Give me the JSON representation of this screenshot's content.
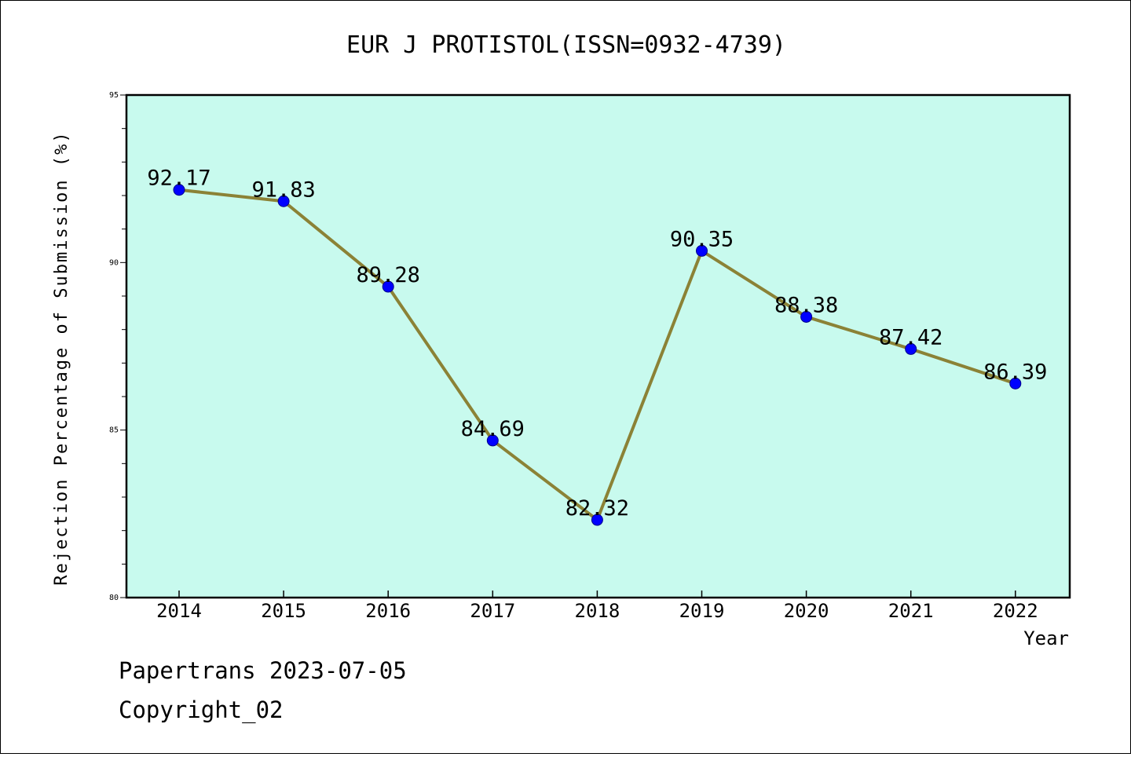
{
  "chart_data": {
    "type": "line",
    "title": "EUR J PROTISTOL(ISSN=0932-4739)",
    "xlabel": "Year",
    "ylabel": "Rejection Percentage of Submission (%)",
    "categories": [
      "2014",
      "2015",
      "2016",
      "2017",
      "2018",
      "2019",
      "2020",
      "2021",
      "2022"
    ],
    "values": [
      92.17,
      91.83,
      89.28,
      84.69,
      82.32,
      90.35,
      88.38,
      87.42,
      86.39
    ],
    "data_labels": [
      "92.17",
      "91.83",
      "89.28",
      "84.69",
      "82.32",
      "90.35",
      "88.38",
      "87.42",
      "86.39"
    ],
    "ylim": [
      80,
      95
    ],
    "yticks": [
      "80",
      "85",
      "90",
      "95"
    ],
    "grid": false,
    "colors": {
      "plot_background": "#c8faee",
      "line": "#8b8236",
      "marker": "#0000ff"
    }
  },
  "footer": {
    "line1": "Papertrans 2023-07-05",
    "line2": "Copyright_02"
  }
}
